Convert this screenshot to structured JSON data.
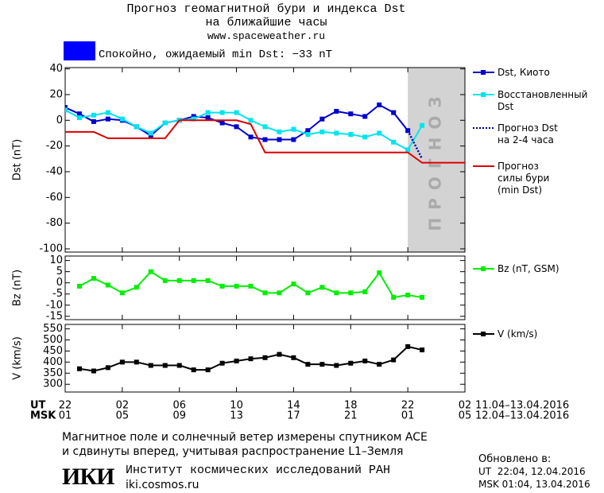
{
  "header": {
    "title_lines": [
      "Прогноз геомагнитной бури и индекса Dst",
      "на ближайшие часы"
    ],
    "url": "www.spaceweather.ru",
    "status": "Спокойно, ожидаемый min Dst: −33 nT",
    "status_color": "#0000ff"
  },
  "chart_data": [
    {
      "type": "line",
      "ylabel": "Dst (nT)",
      "xlim": [
        0,
        28
      ],
      "ylim": [
        -102.5,
        41
      ],
      "yticks": [
        40,
        20,
        0,
        -20,
        -40,
        -60,
        -80,
        -100
      ],
      "forecast_region": {
        "from": 24,
        "to": 28,
        "label": "ПРОГНОЗ",
        "color": "#d3d3d3"
      },
      "series": [
        {
          "name": "Dst, Киото",
          "color": "#0000cc",
          "marker": "square",
          "dash": "solid",
          "x": [
            0,
            1,
            2,
            3,
            4,
            5,
            6,
            7,
            8,
            9,
            10,
            11,
            12,
            13,
            14,
            15,
            16,
            17,
            18,
            19,
            20,
            21,
            22,
            23,
            24
          ],
          "values": [
            10,
            5,
            -1,
            1,
            0,
            -5,
            -12,
            -2,
            0,
            3,
            2,
            -2,
            -5,
            -13,
            -15,
            -15,
            -15,
            -8,
            1,
            7,
            5,
            3,
            12,
            6,
            -8
          ]
        },
        {
          "name": "Восстановленный\nDst",
          "color": "#00e5ee",
          "marker": "square",
          "dash": "solid",
          "x": [
            0,
            1,
            2,
            3,
            4,
            5,
            6,
            7,
            8,
            9,
            10,
            11,
            12,
            13,
            14,
            15,
            16,
            17,
            18,
            19,
            20,
            21,
            22,
            23,
            24,
            25
          ],
          "values": [
            8,
            2,
            4,
            6,
            1,
            -5,
            -10,
            -2,
            0,
            1,
            6,
            6,
            6,
            0,
            -5,
            -9,
            -7,
            -11,
            -9,
            -10,
            -11,
            -13,
            -10,
            -17,
            -23,
            -4
          ]
        },
        {
          "name": "Прогноз Dst\nна 2-4 часа",
          "color": "#0000aa",
          "marker": "none",
          "dash": "dotted",
          "x": [
            24,
            25
          ],
          "values": [
            -8,
            -30
          ]
        },
        {
          "name": "Прогноз\nсилы бури\n(min Dst)",
          "color": "#dd0000",
          "marker": "none",
          "dash": "solid",
          "x": [
            0,
            2,
            3,
            7,
            8,
            12,
            13,
            14,
            24,
            25,
            28
          ],
          "values": [
            -9,
            -9,
            -14,
            -14,
            0,
            0,
            -3,
            -25,
            -25,
            -33,
            -33
          ]
        }
      ]
    },
    {
      "type": "line",
      "ylabel": "Bz (nT)",
      "xlim": [
        0,
        28
      ],
      "ylim": [
        -16.5,
        12
      ],
      "yticks": [
        10,
        5,
        0,
        -5,
        -10,
        -15
      ],
      "series": [
        {
          "name": "Bz (nT, GSM)",
          "color": "#00ee00",
          "marker": "square",
          "dash": "solid",
          "x": [
            1,
            2,
            3,
            4,
            5,
            6,
            7,
            8,
            9,
            10,
            11,
            12,
            13,
            14,
            15,
            16,
            17,
            18,
            19,
            20,
            21,
            22,
            23,
            24,
            25
          ],
          "values": [
            -1.5,
            2,
            -1,
            -4.5,
            -2,
            5,
            1,
            1,
            1,
            1,
            -1.5,
            -1.5,
            -1.5,
            -4.5,
            -4.5,
            -0.5,
            -4.5,
            -2,
            -4.5,
            -4.5,
            -4,
            4.5,
            -6.5,
            -5.5,
            -6.5
          ]
        }
      ]
    },
    {
      "type": "line",
      "ylabel": "V (km/s)",
      "xlim": [
        0,
        28
      ],
      "ylim": [
        265,
        570
      ],
      "yticks": [
        550,
        500,
        450,
        400,
        350,
        300
      ],
      "xlabel": "UT",
      "x2label": "MSK",
      "xticks": [
        {
          "value": 0,
          "label": "22"
        },
        {
          "value": 4,
          "label": "02"
        },
        {
          "value": 8,
          "label": "06"
        },
        {
          "value": 12,
          "label": "10"
        },
        {
          "value": 16,
          "label": "14"
        },
        {
          "value": 20,
          "label": "18"
        },
        {
          "value": 24,
          "label": "22"
        },
        {
          "value": 28,
          "label": "02"
        }
      ],
      "x2ticks": [
        {
          "value": 0,
          "label": "01"
        },
        {
          "value": 4,
          "label": "05"
        },
        {
          "value": 8,
          "label": "09"
        },
        {
          "value": 12,
          "label": "13"
        },
        {
          "value": 16,
          "label": "17"
        },
        {
          "value": 20,
          "label": "21"
        },
        {
          "value": 24,
          "label": "01"
        },
        {
          "value": 28,
          "label": "05"
        }
      ],
      "xrange_label": "11.04–13.04.2016",
      "x2range_label": "12.04–13.04.2016",
      "series": [
        {
          "name": "V (km/s)",
          "color": "#000000",
          "marker": "square",
          "dash": "solid",
          "x": [
            1,
            2,
            3,
            4,
            5,
            6,
            7,
            8,
            9,
            10,
            11,
            12,
            13,
            14,
            15,
            16,
            17,
            18,
            19,
            20,
            21,
            22,
            23,
            24,
            25
          ],
          "values": [
            370,
            360,
            375,
            400,
            400,
            385,
            385,
            385,
            365,
            365,
            395,
            405,
            415,
            420,
            435,
            420,
            390,
            390,
            385,
            395,
            405,
            390,
            410,
            470,
            455
          ]
        }
      ]
    }
  ],
  "footer": {
    "note_lines": [
      "Магнитное поле и солнечный ветер измерены спутником ACE",
      "и сдвинуты вперед, учитывая распространение L1–Земля"
    ],
    "logo": "ИКИ",
    "institute": "Институт космических исследований РАН",
    "site": "iki.cosmos.ru",
    "updated_title": "Обновлено в:",
    "updated_ut": "UT  22:04, 12.04.2016",
    "updated_msk": "MSK 01:04, 13.04.2016"
  }
}
